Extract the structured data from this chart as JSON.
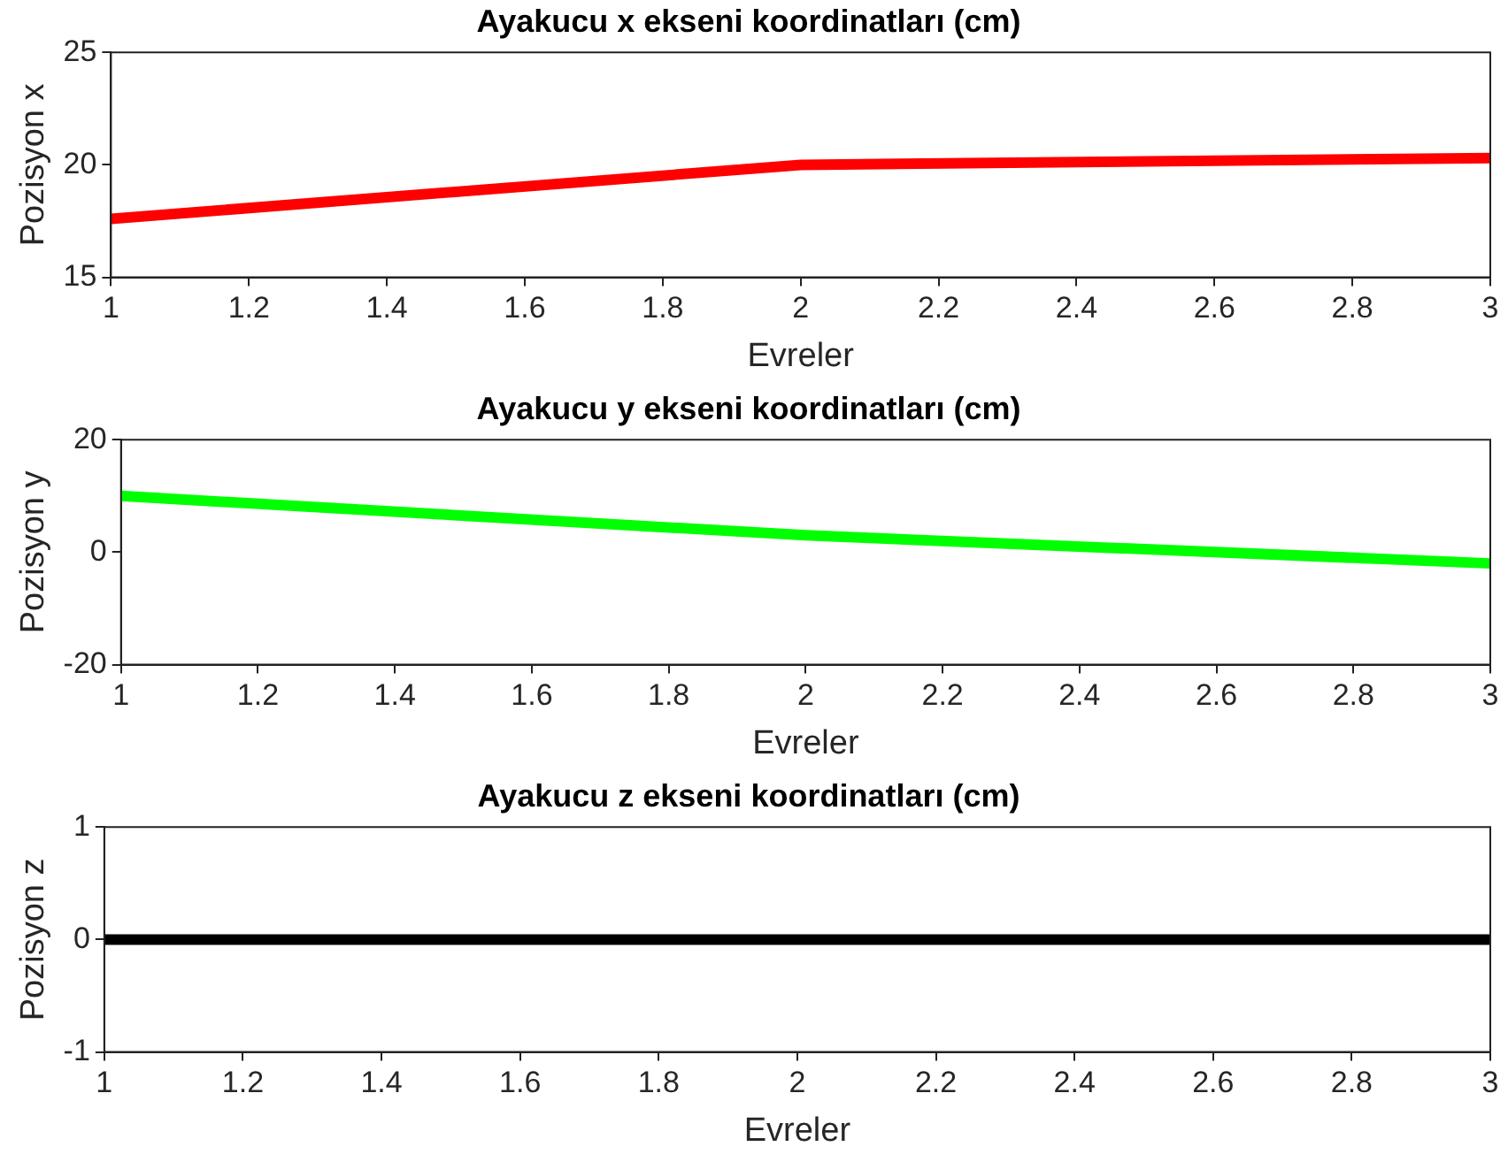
{
  "chart_data": [
    {
      "type": "line",
      "title": "Ayakucu x ekseni koordinatları (cm)",
      "xlabel": "Evreler",
      "ylabel": "Pozisyon x",
      "x": [
        1,
        2,
        3
      ],
      "series": [
        {
          "color": "#ff0000",
          "values": [
            17.6,
            20,
            20.3
          ]
        }
      ],
      "xlim": [
        1,
        3
      ],
      "xticks": [
        1,
        1.2,
        1.4,
        1.6,
        1.8,
        2,
        2.2,
        2.4,
        2.6,
        2.8,
        3
      ],
      "ylim": [
        15,
        25
      ],
      "yticks": [
        15,
        20,
        25
      ]
    },
    {
      "type": "line",
      "title": "Ayakucu y ekseni koordinatları (cm)",
      "xlabel": "Evreler",
      "ylabel": "Pozisyon y",
      "x": [
        1,
        2,
        3
      ],
      "series": [
        {
          "color": "#00ff00",
          "values": [
            10,
            3,
            -2
          ]
        }
      ],
      "xlim": [
        1,
        3
      ],
      "xticks": [
        1,
        1.2,
        1.4,
        1.6,
        1.8,
        2,
        2.2,
        2.4,
        2.6,
        2.8,
        3
      ],
      "ylim": [
        -20,
        20
      ],
      "yticks": [
        -20,
        0,
        20
      ]
    },
    {
      "type": "line",
      "title": "Ayakucu z ekseni koordinatları (cm)",
      "xlabel": "Evreler",
      "ylabel": "Pozisyon z",
      "x": [
        1,
        2,
        3
      ],
      "series": [
        {
          "color": "#000000",
          "values": [
            0,
            0,
            0
          ]
        }
      ],
      "xlim": [
        1,
        3
      ],
      "xticks": [
        1,
        1.2,
        1.4,
        1.6,
        1.8,
        2,
        2.2,
        2.4,
        2.6,
        2.8,
        3
      ],
      "ylim": [
        -1,
        1
      ],
      "yticks": [
        -1,
        0,
        1
      ]
    }
  ]
}
